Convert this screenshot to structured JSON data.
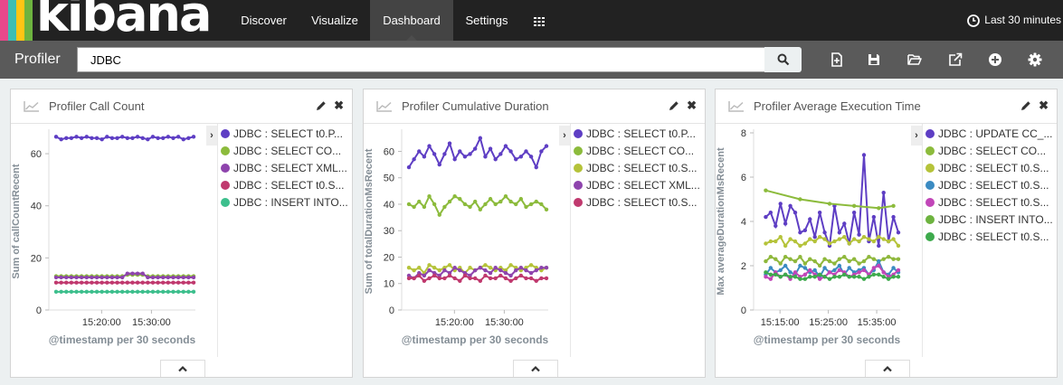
{
  "brand": {
    "logo_text": "kibana",
    "stripe_colors": [
      "#e8488b",
      "#3cbeb4",
      "#fec514",
      "#6db33f",
      "#0079a5"
    ]
  },
  "nav": {
    "items": [
      {
        "label": "Discover",
        "active": false
      },
      {
        "label": "Visualize",
        "active": false
      },
      {
        "label": "Dashboard",
        "active": true
      },
      {
        "label": "Settings",
        "active": false
      }
    ],
    "apps_icon": "grid-icon",
    "time_label": "Last 30 minutes"
  },
  "subnav": {
    "title": "Profiler",
    "search_value": "JDBC",
    "tools": [
      "new-dashboard-icon",
      "save-icon",
      "open-folder-icon",
      "share-icon",
      "add-panel-icon",
      "gear-icon"
    ]
  },
  "panels": [
    {
      "title": "Profiler Call Count",
      "legend": [
        {
          "label": "JDBC : SELECT t0.P...",
          "color": "#5e3ec4"
        },
        {
          "label": "JDBC : SELECT CO...",
          "color": "#8cbb3c"
        },
        {
          "label": "JDBC : SELECT XML...",
          "color": "#8e44ad"
        },
        {
          "label": "JDBC : SELECT t0.S...",
          "color": "#c0396e"
        },
        {
          "label": "JDBC : INSERT INTO...",
          "color": "#3dbf8d"
        }
      ],
      "chart_data": {
        "type": "line",
        "ylabel": "Sum of callCountRecent",
        "xlabel": "@timestamp per 30 seconds",
        "x_tick_labels": [
          "15:20:00",
          "15:30:00"
        ],
        "y_ticks": [
          0,
          20,
          40,
          60
        ],
        "ylim": [
          0,
          68
        ],
        "series": [
          {
            "color": "#5e3ec4",
            "values": [
              66.5,
              65.5,
              66,
              66,
              66.5,
              66,
              66.5,
              66,
              66,
              65.5,
              66.5,
              66,
              66,
              66.5,
              66,
              66,
              66.5,
              66,
              65.5,
              66.5,
              66,
              66,
              66.5,
              66,
              66.5,
              65.5,
              66,
              66.5
            ]
          },
          {
            "color": "#8cbb3c",
            "values": [
              13,
              13,
              13,
              13,
              13,
              13,
              13,
              13,
              13,
              13,
              13,
              13,
              13,
              13,
              13.5,
              13.5,
              13.5,
              13.5,
              13,
              13,
              13,
              13,
              13,
              13,
              13,
              13,
              13,
              13
            ]
          },
          {
            "color": "#8e44ad",
            "values": [
              12.5,
              12.5,
              12.5,
              12.5,
              12.5,
              12.5,
              12.5,
              12.5,
              12.5,
              12.5,
              12.5,
              12.5,
              12.5,
              12.5,
              14,
              14,
              14,
              14,
              12.5,
              12.5,
              12.5,
              12.5,
              12.5,
              12.5,
              12.5,
              12.5,
              12.5,
              12.5
            ]
          },
          {
            "color": "#c0396e",
            "values": [
              10.5,
              10.5,
              10.5,
              10.5,
              10.5,
              10.5,
              10.5,
              10.5,
              10.5,
              10.5,
              10.5,
              10.5,
              10.5,
              10.5,
              10.5,
              10.5,
              10.5,
              10.5,
              10.5,
              10.5,
              10.5,
              10.5,
              10.5,
              10.5,
              10.5,
              10.5,
              10.5,
              10.5
            ]
          },
          {
            "color": "#3dbf8d",
            "values": [
              7,
              7,
              7,
              7,
              7,
              7,
              7,
              7,
              7,
              7,
              7,
              7,
              7,
              7,
              7,
              7,
              7,
              7,
              7,
              7,
              7,
              7,
              7,
              7,
              7,
              7,
              7,
              7
            ]
          }
        ]
      }
    },
    {
      "title": "Profiler Cumulative Duration",
      "legend": [
        {
          "label": "JDBC : SELECT t0.P...",
          "color": "#5e3ec4"
        },
        {
          "label": "JDBC : SELECT CO...",
          "color": "#8cbb3c"
        },
        {
          "label": "JDBC : SELECT t0.S...",
          "color": "#b5c33a"
        },
        {
          "label": "JDBC : SELECT XML...",
          "color": "#8e44ad"
        },
        {
          "label": "JDBC : SELECT t0.S...",
          "color": "#c0396e"
        }
      ],
      "chart_data": {
        "type": "line",
        "ylabel": "Sum of totalDurationMsRecent",
        "xlabel": "@timestamp per 30 seconds",
        "x_tick_labels": [
          "15:20:00",
          "15:30:00"
        ],
        "y_ticks": [
          0,
          10,
          20,
          30,
          40,
          50,
          60
        ],
        "ylim": [
          0,
          67
        ],
        "series": [
          {
            "color": "#5e3ec4",
            "values": [
              54,
              57,
              60,
              58,
              62,
              59,
              55,
              59,
              63,
              57,
              60,
              58,
              59,
              61,
              65,
              58,
              61,
              57,
              59,
              62,
              60,
              57,
              58,
              60,
              58,
              54,
              60,
              62
            ]
          },
          {
            "color": "#8cbb3c",
            "values": [
              40,
              39,
              41,
              39,
              43,
              40,
              36,
              39,
              41,
              43,
              42,
              40,
              39,
              41,
              38,
              40,
              42,
              40,
              41,
              43,
              41,
              40,
              42,
              39,
              40,
              41,
              40,
              38
            ]
          },
          {
            "color": "#b5c33a",
            "values": [
              16,
              15,
              16,
              14,
              17,
              16,
              15,
              16,
              17,
              15,
              16,
              14,
              16,
              15,
              16,
              17,
              16,
              15,
              16,
              15,
              17,
              16,
              15,
              16,
              17,
              16,
              15,
              16
            ]
          },
          {
            "color": "#8e44ad",
            "values": [
              13,
              12,
              14,
              13,
              15,
              14,
              13,
              15,
              14,
              16,
              15,
              14,
              13,
              15,
              16,
              15,
              14,
              16,
              15,
              14,
              13,
              15,
              16,
              15,
              14,
              15,
              16,
              16
            ]
          },
          {
            "color": "#c0396e",
            "values": [
              12,
              12,
              13,
              11,
              12,
              13,
              12,
              12,
              13,
              12,
              11,
              13,
              12,
              12,
              11,
              13,
              12,
              12,
              13,
              12,
              11,
              12,
              13,
              12,
              12,
              11,
              12,
              12
            ]
          }
        ]
      }
    },
    {
      "title": "Profiler Average Execution Time",
      "legend": [
        {
          "label": "JDBC : UPDATE CC_...",
          "color": "#5e3ec4"
        },
        {
          "label": "JDBC : SELECT CO...",
          "color": "#8cbb3c"
        },
        {
          "label": "JDBC : SELECT t0.S...",
          "color": "#b5c33a"
        },
        {
          "label": "JDBC : SELECT t0.S...",
          "color": "#3b8bc2"
        },
        {
          "label": "JDBC : SELECT t0.S...",
          "color": "#c146b8"
        },
        {
          "label": "JDBC : INSERT INTO...",
          "color": "#6db33f"
        },
        {
          "label": "JDBC : SELECT t0.S...",
          "color": "#3daa4c"
        }
      ],
      "chart_data": {
        "type": "line",
        "ylabel": "Max averageDurationMsRecent",
        "xlabel": "@timestamp per 30 seconds",
        "x_tick_labels": [
          "15:15:00",
          "15:25:00",
          "15:35:00"
        ],
        "y_ticks": [
          0,
          2,
          4,
          6,
          8
        ],
        "ylim": [
          0,
          8
        ],
        "series": [
          {
            "color": "#5e3ec4",
            "values": [
              null,
              4.2,
              4.4,
              3.8,
              4.8,
              3.9,
              4.7,
              4.4,
              3.5,
              3.6,
              4.1,
              3.3,
              4.4,
              3.5,
              2.9,
              4.7,
              3.5,
              3.9,
              3.0,
              4.4,
              3.4,
              7.0,
              3.1,
              4.2,
              2.9,
              5.3,
              3.1,
              4.2,
              3.5
            ]
          },
          {
            "color": "#8cbb3c",
            "values": [
              null,
              5.4,
              null,
              null,
              null,
              null,
              null,
              null,
              5.0,
              null,
              null,
              null,
              null,
              null,
              4.8,
              null,
              null,
              null,
              null,
              4.7,
              null,
              null,
              null,
              null,
              4.6,
              null,
              null,
              4.7,
              null
            ]
          },
          {
            "color": "#b5c33a",
            "values": [
              null,
              3.0,
              3.1,
              3.1,
              3.3,
              2.9,
              3.2,
              3.1,
              2.9,
              3.0,
              3.2,
              3.1,
              3.3,
              3.2,
              3.0,
              3.1,
              3.2,
              3.3,
              3.0,
              3.2,
              3.1,
              3.3,
              3.2,
              3.1,
              3.3,
              3.2,
              3.1,
              3.2,
              2.9
            ]
          },
          {
            "color": "#8fb83c",
            "values": [
              null,
              2.2,
              2.4,
              2.3,
              2.1,
              2.4,
              2.3,
              2.2,
              2.4,
              2.1,
              2.3,
              2.2,
              2.0,
              2.3,
              2.2,
              2.1,
              2.3,
              2.4,
              2.2,
              2.3,
              2.1,
              2.2,
              2.4,
              2.3,
              2.2,
              2.3,
              2.4,
              2.3,
              2.3
            ]
          },
          {
            "color": "#3b8bc2",
            "values": [
              null,
              1.6,
              1.9,
              1.7,
              1.8,
              2.0,
              1.7,
              1.6,
              2.0,
              1.9,
              1.7,
              1.8,
              1.5,
              1.9,
              1.7,
              1.8,
              2.0,
              1.6,
              1.9,
              1.7,
              1.8,
              1.9,
              1.6,
              1.8,
              2.2,
              1.7,
              1.6,
              1.9,
              1.7
            ]
          },
          {
            "color": "#c146b8",
            "values": [
              null,
              1.5,
              1.4,
              1.7,
              1.5,
              1.6,
              1.4,
              1.7,
              1.5,
              1.6,
              1.8,
              1.6,
              1.4,
              1.5,
              1.7,
              1.6,
              1.8,
              1.7,
              1.5,
              1.6,
              1.7,
              1.8,
              1.6,
              1.9,
              2.0,
              1.7,
              1.5,
              1.6,
              1.8
            ]
          },
          {
            "color": "#3daa4c",
            "values": [
              null,
              1.7,
              1.6,
              1.6,
              1.5,
              1.6,
              1.5,
              1.5,
              1.4,
              1.4,
              1.5,
              1.5,
              1.6,
              1.5,
              1.4,
              1.5,
              1.5,
              1.6,
              1.5,
              1.5,
              1.5,
              1.4,
              1.5,
              1.6,
              1.6,
              1.5,
              1.4,
              1.5,
              1.5
            ]
          }
        ]
      }
    }
  ]
}
